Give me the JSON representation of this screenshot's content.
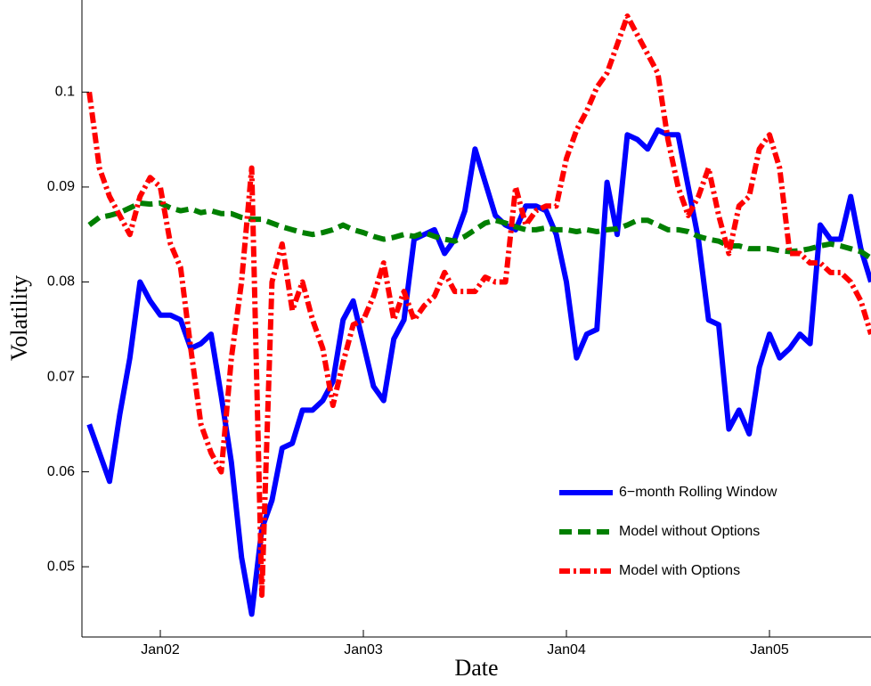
{
  "chart_data": {
    "type": "line",
    "xlabel": "Date",
    "ylabel": "Volatility",
    "xlim": [
      2001.614,
      2005.5
    ],
    "ylim": [
      0.0426,
      0.1097
    ],
    "xticks": [
      {
        "value": 2002,
        "label": "Jan02"
      },
      {
        "value": 2003,
        "label": "Jan03"
      },
      {
        "value": 2004,
        "label": "Jan04"
      },
      {
        "value": 2005,
        "label": "Jan05"
      }
    ],
    "yticks": [
      0.05,
      0.06,
      0.07,
      0.08,
      0.09,
      0.1
    ],
    "x": [
      2001.65,
      2001.7,
      2001.75,
      2001.8,
      2001.85,
      2001.9,
      2001.95,
      2002,
      2002.05,
      2002.1,
      2002.15,
      2002.2,
      2002.25,
      2002.3,
      2002.35,
      2002.4,
      2002.45,
      2002.5,
      2002.55,
      2002.6,
      2002.65,
      2002.7,
      2002.75,
      2002.8,
      2002.85,
      2002.9,
      2002.95,
      2003,
      2003.05,
      2003.1,
      2003.15,
      2003.2,
      2003.25,
      2003.3,
      2003.35,
      2003.4,
      2003.45,
      2003.5,
      2003.55,
      2003.6,
      2003.65,
      2003.7,
      2003.75,
      2003.8,
      2003.85,
      2003.9,
      2003.95,
      2004,
      2004.05,
      2004.1,
      2004.15,
      2004.2,
      2004.25,
      2004.3,
      2004.35,
      2004.4,
      2004.45,
      2004.5,
      2004.55,
      2004.6,
      2004.65,
      2004.7,
      2004.75,
      2004.8,
      2004.85,
      2004.9,
      2004.95,
      2005,
      2005.05,
      2005.1,
      2005.15,
      2005.2,
      2005.25,
      2005.3,
      2005.35,
      2005.4,
      2005.45,
      2005.5
    ],
    "legend": "lower right",
    "series": [
      {
        "name": "6−month Rolling Window",
        "color": "#0000ff",
        "style": "solid",
        "values": [
          0.065,
          0.062,
          0.059,
          0.066,
          0.072,
          0.08,
          0.078,
          0.0765,
          0.0765,
          0.076,
          0.073,
          0.0735,
          0.0745,
          0.068,
          0.061,
          0.051,
          0.045,
          0.054,
          0.057,
          0.0625,
          0.063,
          0.0665,
          0.0665,
          0.0675,
          0.0695,
          0.076,
          0.078,
          0.0735,
          0.069,
          0.0675,
          0.074,
          0.076,
          0.0845,
          0.085,
          0.0855,
          0.083,
          0.0845,
          0.0875,
          0.094,
          0.0905,
          0.087,
          0.086,
          0.0855,
          0.088,
          0.088,
          0.0875,
          0.085,
          0.08,
          0.072,
          0.0745,
          0.075,
          0.0905,
          0.085,
          0.0955,
          0.095,
          0.094,
          0.096,
          0.0955,
          0.0955,
          0.09,
          0.0845,
          0.076,
          0.0755,
          0.0645,
          0.0665,
          0.064,
          0.071,
          0.0745,
          0.072,
          0.073,
          0.0745,
          0.0735,
          0.086,
          0.0845,
          0.0845,
          0.089,
          0.0835,
          0.08
        ]
      },
      {
        "name": "Model without Options",
        "color": "#007f00",
        "style": "dashed",
        "values": [
          0.086,
          0.0868,
          0.087,
          0.0873,
          0.0878,
          0.0883,
          0.0882,
          0.0883,
          0.0878,
          0.0875,
          0.0877,
          0.0873,
          0.0875,
          0.0872,
          0.0872,
          0.0868,
          0.0866,
          0.0866,
          0.0862,
          0.0858,
          0.0855,
          0.0852,
          0.085,
          0.0852,
          0.0855,
          0.086,
          0.0855,
          0.0852,
          0.0848,
          0.0845,
          0.0847,
          0.085,
          0.0848,
          0.0852,
          0.0848,
          0.0845,
          0.0843,
          0.0848,
          0.0855,
          0.0862,
          0.0865,
          0.0862,
          0.0858,
          0.0855,
          0.0855,
          0.0857,
          0.0855,
          0.0855,
          0.0853,
          0.0855,
          0.0853,
          0.0855,
          0.0856,
          0.086,
          0.0865,
          0.0865,
          0.086,
          0.0855,
          0.0855,
          0.0853,
          0.0848,
          0.0845,
          0.0843,
          0.0838,
          0.0838,
          0.0835,
          0.0835,
          0.0835,
          0.0833,
          0.0832,
          0.0833,
          0.0835,
          0.0838,
          0.084,
          0.0838,
          0.0835,
          0.0832,
          0.0825
        ]
      },
      {
        "name": "Model with Options",
        "color": "#ff0000",
        "style": "dashdot",
        "values": [
          0.1,
          0.092,
          0.089,
          0.087,
          0.085,
          0.089,
          0.091,
          0.09,
          0.084,
          0.0815,
          0.073,
          0.065,
          0.062,
          0.06,
          0.072,
          0.08,
          0.092,
          0.047,
          0.08,
          0.084,
          0.077,
          0.08,
          0.076,
          0.073,
          0.067,
          0.0715,
          0.0755,
          0.076,
          0.0785,
          0.082,
          0.076,
          0.079,
          0.076,
          0.0775,
          0.0785,
          0.081,
          0.079,
          0.079,
          0.079,
          0.0805,
          0.08,
          0.08,
          0.09,
          0.086,
          0.0875,
          0.088,
          0.088,
          0.093,
          0.096,
          0.098,
          0.1005,
          0.102,
          0.105,
          0.108,
          0.106,
          0.104,
          0.102,
          0.095,
          0.09,
          0.087,
          0.089,
          0.092,
          0.087,
          0.083,
          0.088,
          0.089,
          0.094,
          0.0955,
          0.092,
          0.083,
          0.083,
          0.082,
          0.082,
          0.081,
          0.081,
          0.08,
          0.078,
          0.0745
        ]
      }
    ]
  }
}
